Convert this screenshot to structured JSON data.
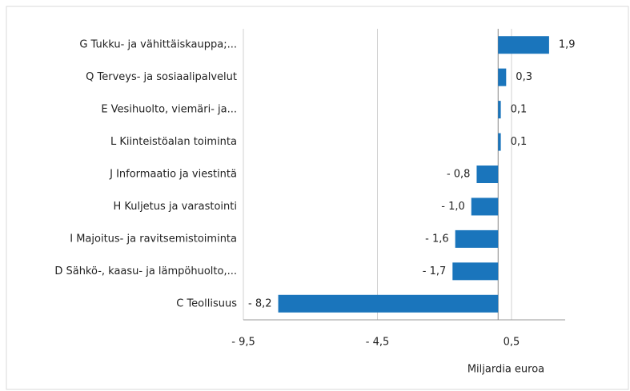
{
  "chart_data": {
    "type": "bar",
    "orientation": "horizontal",
    "categories": [
      "G Tukku- ja vähittäiskauppa;...",
      "Q Terveys- ja sosiaalipalvelut",
      "E Vesihuolto, viemäri- ja...",
      "L Kiinteistöalan toiminta",
      "J Informaatio ja viestintä",
      "H Kuljetus ja varastointi",
      "I Majoitus- ja ravitsemistoiminta",
      "D Sähkö-, kaasu- ja lämpöhuolto,...",
      "C Teollisuus"
    ],
    "values": [
      1.9,
      0.3,
      0.1,
      0.1,
      -0.8,
      -1.0,
      -1.6,
      -1.7,
      -8.2
    ],
    "value_labels": [
      "1,9",
      "0,3",
      "0,1",
      "0,1",
      "- 0,8",
      "- 1,0",
      "- 1,6",
      "- 1,7",
      "- 8,2"
    ],
    "color": "#1a75bc",
    "xlim": [
      -9.5,
      2.5
    ],
    "xticks": [
      {
        "value": -9.5,
        "label": "- 9,5"
      },
      {
        "value": -4.5,
        "label": "- 4,5"
      },
      {
        "value": 0.5,
        "label": "0,5"
      }
    ],
    "xlabel": "Miljardia euroa",
    "grid": true
  }
}
